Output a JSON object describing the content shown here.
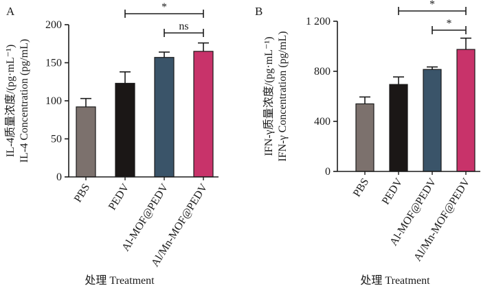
{
  "chart_data": [
    {
      "type": "bar",
      "panel": "A",
      "ylabel": [
        "IL-4质量浓度/(pg·mL⁻¹)",
        "IL-4 Concentration (pg/mL)"
      ],
      "xlabel": "处理  Treatment",
      "categories": [
        "PBS",
        "PEDV",
        "Al-MOF@PEDV",
        "Al/Mn-MOF@PEDV"
      ],
      "values": [
        92,
        123,
        157,
        165
      ],
      "errors": [
        11,
        15,
        7,
        11
      ],
      "colors": [
        "#7c716d",
        "#1b1716",
        "#3a5469",
        "#c8336a"
      ],
      "ylim": [
        0,
        200
      ],
      "yticks": [
        0,
        50,
        100,
        150,
        200
      ],
      "ytick_labels": [
        "0",
        "50",
        "100",
        "150",
        "200"
      ],
      "comparisons": [
        {
          "from": 1,
          "to": 3,
          "label": "*"
        },
        {
          "from": 2,
          "to": 3,
          "label": "ns"
        }
      ]
    },
    {
      "type": "bar",
      "panel": "B",
      "ylabel": [
        "IFN-γ质量浓度/(pg·mL⁻¹)",
        "IFN-γ Concentration (pg/mL)"
      ],
      "xlabel": "处理  Treatment",
      "categories": [
        "PBS",
        "PEDV",
        "Al-MOF@PEDV",
        "Al/Mn-MOF@PEDV"
      ],
      "values": [
        540,
        695,
        815,
        975
      ],
      "errors": [
        55,
        60,
        20,
        90
      ],
      "colors": [
        "#7c716d",
        "#1b1716",
        "#3a5469",
        "#c8336a"
      ],
      "ylim": [
        0,
        1200
      ],
      "yticks": [
        0,
        400,
        800,
        1200
      ],
      "ytick_labels": [
        "0",
        "400",
        "800",
        "1 200"
      ],
      "comparisons": [
        {
          "from": 1,
          "to": 3,
          "label": "*"
        },
        {
          "from": 2,
          "to": 3,
          "label": "*"
        }
      ]
    }
  ]
}
